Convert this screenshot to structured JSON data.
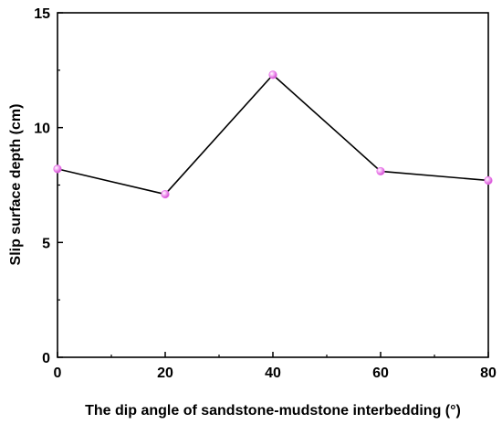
{
  "chart_data": {
    "type": "line",
    "title": "",
    "xlabel": "The dip angle of sandstone-mudstone interbedding (°)",
    "ylabel": "Slip surface depth (cm)",
    "xlim": [
      0,
      80
    ],
    "ylim": [
      0,
      15
    ],
    "xticks": [
      "0",
      "20",
      "40",
      "60",
      "80"
    ],
    "yticks": [
      "0",
      "5",
      "10",
      "15"
    ],
    "grid": false,
    "legend": "none",
    "series": [
      {
        "x": [
          0,
          20,
          40,
          60,
          80
        ],
        "y": [
          8.2,
          7.1,
          12.3,
          8.1,
          7.7
        ],
        "line_color": "#000000",
        "marker_color": "#e86ee8"
      }
    ]
  }
}
